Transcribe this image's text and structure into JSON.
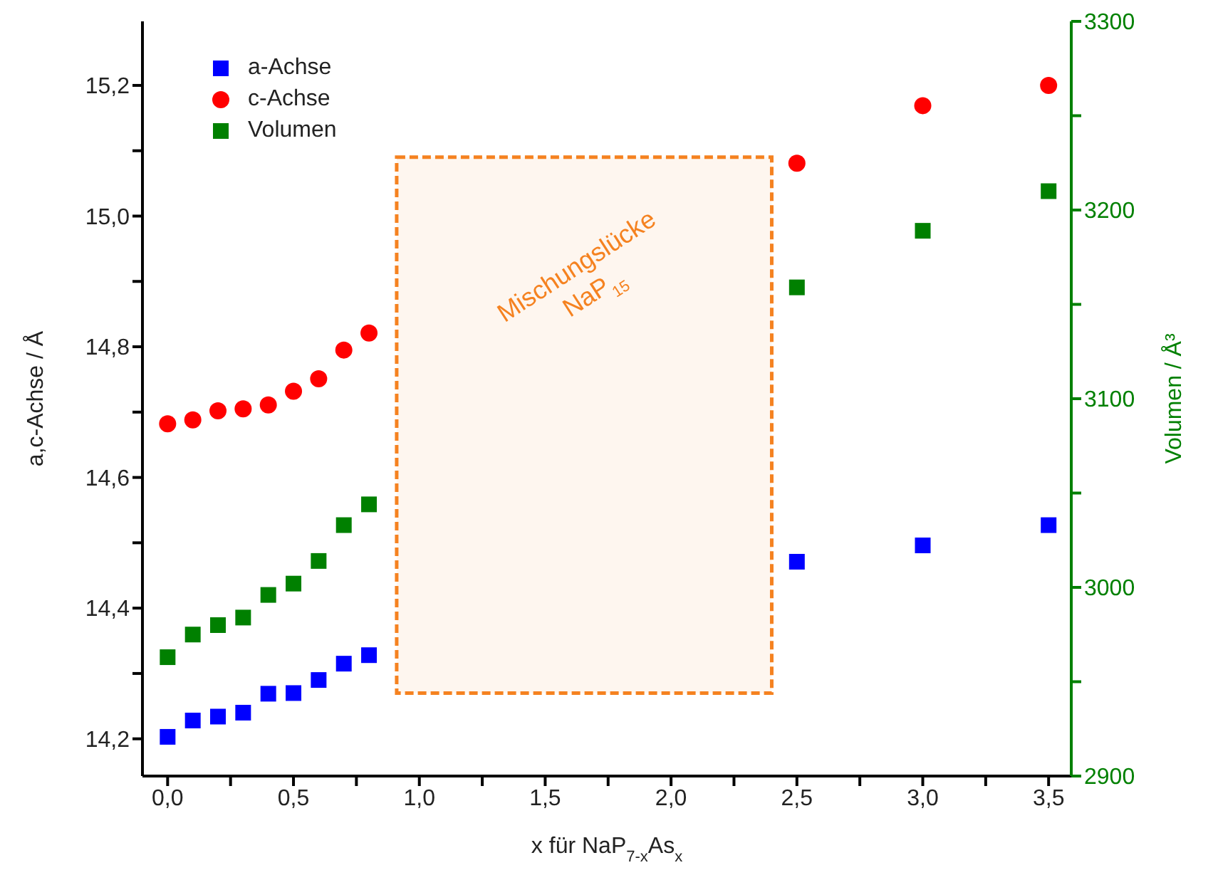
{
  "chart_data": {
    "type": "scatter",
    "xlabel": "x für NaP$_{7-x}$As$_{x}$",
    "ylabel": "a,c-Achse / Å",
    "y2label": "Volumen / Å³",
    "x": [
      0,
      0.1,
      0.2,
      0.3,
      0.4,
      0.5,
      0.6,
      0.7,
      0.8,
      2.5,
      3.0,
      3.5
    ],
    "series": [
      {
        "name": "a-Achse",
        "color": "#0000ff",
        "marker": "square",
        "values": [
          14.203,
          14.228,
          14.234,
          14.24,
          14.269,
          14.27,
          14.29,
          14.315,
          14.328,
          14.471,
          14.496,
          14.527
        ]
      },
      {
        "name": "c-Achse",
        "color": "#ff0000",
        "marker": "circle",
        "values": [
          14.682,
          14.688,
          14.702,
          14.705,
          14.711,
          14.732,
          14.751,
          14.795,
          14.821,
          15.081,
          15.169,
          15.2
        ]
      },
      {
        "name": "Volumen",
        "color": "#008000",
        "marker": "square",
        "axis": "y2",
        "values": [
          2963,
          2975,
          2980,
          2984,
          2996,
          3002,
          3014,
          3033,
          3044,
          3159,
          3189,
          3210
        ]
      }
    ],
    "xlim": [
      -0.1,
      3.59
    ],
    "xticks": [
      {
        "value": 0,
        "label": "0,0"
      },
      {
        "value": 0.25,
        "label": null
      },
      {
        "value": 0.5,
        "label": "0,5"
      },
      {
        "value": 0.75,
        "label": null
      },
      {
        "value": 1,
        "label": "1,0"
      },
      {
        "value": 1.25,
        "label": null
      },
      {
        "value": 1.5,
        "label": "1,5"
      },
      {
        "value": 1.75,
        "label": null
      },
      {
        "value": 2,
        "label": "2,0"
      },
      {
        "value": 2.25,
        "label": null
      },
      {
        "value": 2.5,
        "label": "2,5"
      },
      {
        "value": 2.75,
        "label": null
      },
      {
        "value": 3,
        "label": "3,0"
      },
      {
        "value": 3.25,
        "label": null
      },
      {
        "value": 3.5,
        "label": "3,5"
      }
    ],
    "ylim": [
      14.143,
      15.298
    ],
    "yticks": [
      {
        "value": 14.2,
        "label": "14,2"
      },
      {
        "value": 14.3,
        "label": null
      },
      {
        "value": 14.4,
        "label": "14,4"
      },
      {
        "value": 14.5,
        "label": null
      },
      {
        "value": 14.6,
        "label": "14,6"
      },
      {
        "value": 14.7,
        "label": null
      },
      {
        "value": 14.8,
        "label": "14,8"
      },
      {
        "value": 14.9,
        "label": null
      },
      {
        "value": 15.0,
        "label": "15,0"
      },
      {
        "value": 15.1,
        "label": null
      },
      {
        "value": 15.2,
        "label": "15,2"
      }
    ],
    "y2lim": [
      2900,
      3300
    ],
    "y2ticks": [
      2900,
      {
        "value": 2950,
        "label": null
      },
      3000,
      {
        "value": 3050,
        "label": null
      },
      3100,
      {
        "value": 3150,
        "label": null
      },
      3200,
      {
        "value": 3250,
        "label": null
      },
      3300
    ],
    "bands": [
      {
        "axis": "x",
        "from": 0.91,
        "to": 2.4,
        "label": "Mischungslücke NaP$_{15}$",
        "color": "#f58220"
      }
    ],
    "legend": "top left"
  }
}
